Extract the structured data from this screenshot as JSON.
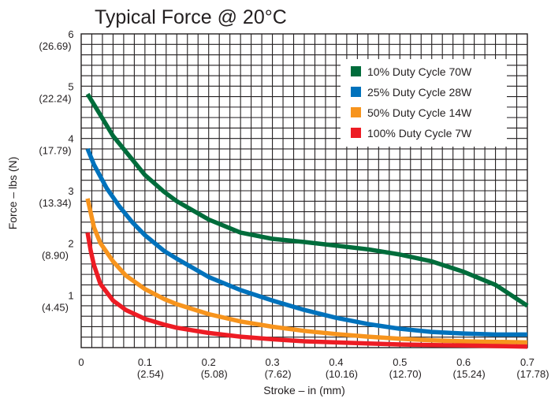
{
  "chart_data": {
    "type": "line",
    "title": "Typical Force @ 20°C",
    "xlabel": "Stroke – in (mm)",
    "ylabel": "Force – lbs (N)",
    "xlim": [
      0,
      0.7
    ],
    "ylim": [
      0,
      6
    ],
    "grid": true,
    "legend_position": "top-right",
    "x_ticks": [
      {
        "value": 0,
        "label": "0",
        "sub": ""
      },
      {
        "value": 0.1,
        "label": "0.1",
        "sub": "(2.54)"
      },
      {
        "value": 0.2,
        "label": "0.2",
        "sub": "(5.08)"
      },
      {
        "value": 0.3,
        "label": "0.3",
        "sub": "(7.62)"
      },
      {
        "value": 0.4,
        "label": "0.4",
        "sub": "(10.16)"
      },
      {
        "value": 0.5,
        "label": "0.5",
        "sub": "(12.70)"
      },
      {
        "value": 0.6,
        "label": "0.6",
        "sub": "(15.24)"
      },
      {
        "value": 0.7,
        "label": "0.7",
        "sub": "(17.78)"
      }
    ],
    "y_ticks": [
      {
        "value": 1,
        "label": "1",
        "sub": "(4.45)"
      },
      {
        "value": 2,
        "label": "2",
        "sub": "(8.90)"
      },
      {
        "value": 3,
        "label": "3",
        "sub": "(13.34)"
      },
      {
        "value": 4,
        "label": "4",
        "sub": "(17.79)"
      },
      {
        "value": 5,
        "label": "5",
        "sub": "(22.24)"
      },
      {
        "value": 6,
        "label": "6",
        "sub": "(26.69)"
      }
    ],
    "series": [
      {
        "name": "10% Duty Cycle 70W",
        "color": "#006c3b",
        "x": [
          0.01,
          0.03,
          0.05,
          0.08,
          0.1,
          0.13,
          0.15,
          0.2,
          0.25,
          0.3,
          0.35,
          0.4,
          0.45,
          0.5,
          0.55,
          0.6,
          0.65,
          0.7
        ],
        "y": [
          4.85,
          4.45,
          4.05,
          3.6,
          3.3,
          2.98,
          2.8,
          2.45,
          2.2,
          2.08,
          2.02,
          1.95,
          1.88,
          1.78,
          1.65,
          1.45,
          1.2,
          0.8
        ]
      },
      {
        "name": "25% Duty Cycle 28W",
        "color": "#0072bc",
        "x": [
          0.01,
          0.02,
          0.04,
          0.06,
          0.08,
          0.1,
          0.13,
          0.15,
          0.2,
          0.25,
          0.3,
          0.35,
          0.4,
          0.45,
          0.5,
          0.55,
          0.6,
          0.65,
          0.7
        ],
        "y": [
          3.8,
          3.5,
          3.05,
          2.7,
          2.4,
          2.15,
          1.85,
          1.7,
          1.35,
          1.1,
          0.9,
          0.72,
          0.57,
          0.45,
          0.36,
          0.3,
          0.27,
          0.25,
          0.25
        ]
      },
      {
        "name": "50% Duty Cycle 14W",
        "color": "#f7941d",
        "x": [
          0.01,
          0.02,
          0.03,
          0.05,
          0.07,
          0.1,
          0.13,
          0.15,
          0.2,
          0.25,
          0.3,
          0.35,
          0.4,
          0.45,
          0.5,
          0.55,
          0.6,
          0.65,
          0.7
        ],
        "y": [
          2.85,
          2.3,
          2.0,
          1.65,
          1.38,
          1.12,
          0.93,
          0.83,
          0.64,
          0.5,
          0.4,
          0.32,
          0.26,
          0.21,
          0.17,
          0.14,
          0.12,
          0.11,
          0.1
        ]
      },
      {
        "name": "100% Duty Cycle 7W",
        "color": "#ed1c24",
        "x": [
          0.01,
          0.015,
          0.02,
          0.03,
          0.05,
          0.07,
          0.1,
          0.13,
          0.15,
          0.2,
          0.25,
          0.3,
          0.35,
          0.4,
          0.45,
          0.5,
          0.55,
          0.6,
          0.65,
          0.7
        ],
        "y": [
          2.2,
          1.85,
          1.58,
          1.22,
          0.9,
          0.72,
          0.55,
          0.44,
          0.38,
          0.28,
          0.21,
          0.16,
          0.12,
          0.1,
          0.08,
          0.06,
          0.05,
          0.04,
          0.03,
          0.02
        ]
      }
    ]
  }
}
